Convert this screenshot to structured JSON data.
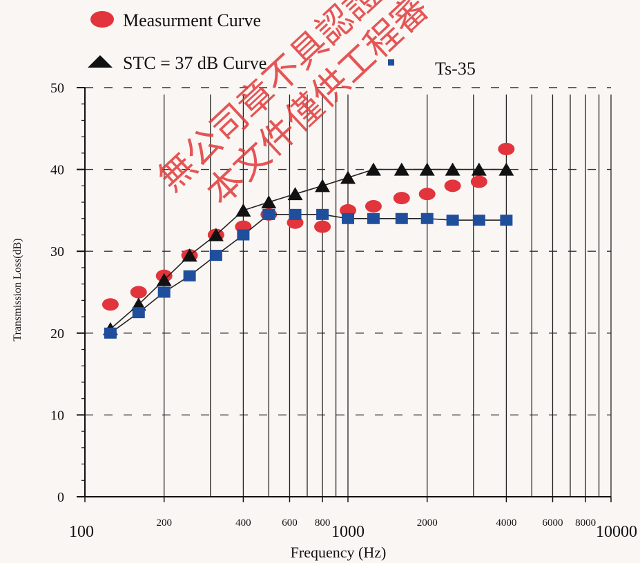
{
  "watermark": {
    "line1": "無公司章不具認證",
    "line2": "本文件僅供工程審"
  },
  "chart_data": {
    "type": "line",
    "title": "",
    "xlabel": "Frequency (Hz)",
    "ylabel": "Transmission Loss(dB)",
    "xscale": "log",
    "xlim": [
      100,
      10000
    ],
    "ylim": [
      0,
      50
    ],
    "grid": true,
    "legend_position": "top-left",
    "yticks": [
      0,
      10,
      20,
      30,
      40,
      50
    ],
    "xticks": [
      {
        "value": 100,
        "label": "100"
      },
      {
        "value": 200,
        "label": "200"
      },
      {
        "value": 400,
        "label": "400"
      },
      {
        "value": 600,
        "label": "600"
      },
      {
        "value": 800,
        "label": "800"
      },
      {
        "value": 1000,
        "label": "1000"
      },
      {
        "value": 2000,
        "label": "2000"
      },
      {
        "value": 4000,
        "label": "4000"
      },
      {
        "value": 6000,
        "label": "6000"
      },
      {
        "value": 8000,
        "label": "8000"
      },
      {
        "value": 10000,
        "label": "10000"
      }
    ],
    "series": [
      {
        "name": "Measurment Curve",
        "marker": "circle",
        "color": "#e2343c",
        "connected": false,
        "x": [
          125,
          160,
          200,
          250,
          315,
          400,
          500,
          630,
          800,
          1000,
          1250,
          1600,
          2000,
          2500,
          3150,
          4000
        ],
        "y": [
          23.5,
          25,
          27,
          29.5,
          32,
          33,
          34.5,
          33.5,
          33,
          35,
          35.5,
          36.5,
          37,
          38,
          38.5,
          42.5
        ]
      },
      {
        "name": "STC = 37 dB Curve",
        "marker": "triangle",
        "color": "#111111",
        "connected": true,
        "x": [
          125,
          160,
          200,
          250,
          315,
          400,
          500,
          630,
          800,
          1000,
          1250,
          1600,
          2000,
          2500,
          3150,
          4000
        ],
        "y": [
          20.5,
          23.5,
          26.5,
          29.5,
          32,
          35,
          36,
          37,
          38,
          39,
          40,
          40,
          40,
          40,
          40,
          40
        ]
      },
      {
        "name": "Ts-35",
        "marker": "square",
        "color": "#1f4e9c",
        "connected": true,
        "x": [
          125,
          160,
          200,
          250,
          315,
          400,
          500,
          630,
          800,
          1000,
          1250,
          1600,
          2000,
          2500,
          3150,
          4000
        ],
        "y": [
          20,
          22.5,
          25,
          27,
          29.5,
          32,
          34.5,
          34.5,
          34.5,
          34,
          34,
          34,
          34,
          33.8,
          33.8,
          33.8
        ]
      }
    ]
  }
}
